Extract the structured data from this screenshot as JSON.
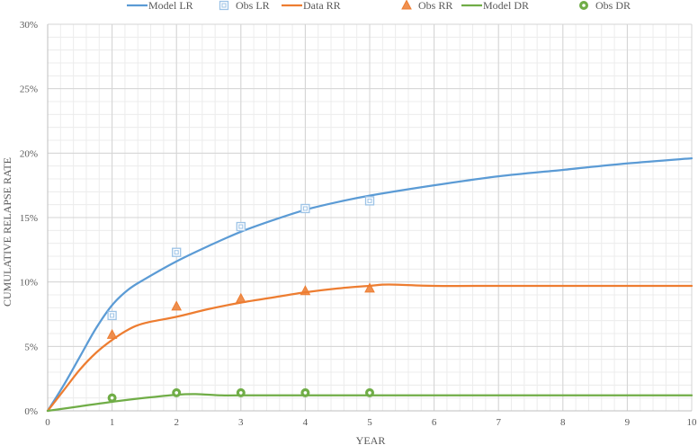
{
  "chart_data": {
    "type": "line",
    "xlabel": "YEAR",
    "ylabel": "CUMULATIVE RELAPSE RATE",
    "xlim": [
      0,
      10
    ],
    "ylim": [
      0,
      30
    ],
    "x_ticks": [
      "0",
      "1",
      "2",
      "3",
      "4",
      "5",
      "6",
      "7",
      "8",
      "9",
      "10"
    ],
    "y_ticks": [
      "0%",
      "5%",
      "10%",
      "15%",
      "20%",
      "25%",
      "30%"
    ],
    "grid": true,
    "legend_position": "top",
    "series": [
      {
        "name": "Model LR",
        "kind": "line",
        "color": "#5b9bd5",
        "points": [
          [
            0,
            0
          ],
          [
            0.25,
            2.0
          ],
          [
            0.5,
            4.2
          ],
          [
            0.75,
            6.4
          ],
          [
            1,
            8.2
          ],
          [
            1.25,
            9.4
          ],
          [
            1.5,
            10.2
          ],
          [
            2,
            11.6
          ],
          [
            2.5,
            12.8
          ],
          [
            3,
            13.9
          ],
          [
            3.5,
            14.8
          ],
          [
            4,
            15.6
          ],
          [
            4.5,
            16.2
          ],
          [
            5,
            16.7
          ],
          [
            6,
            17.5
          ],
          [
            7,
            18.2
          ],
          [
            8,
            18.7
          ],
          [
            9,
            19.2
          ],
          [
            10,
            19.6
          ]
        ]
      },
      {
        "name": "Obs LR",
        "kind": "marker-square",
        "color": "#9dc3e6",
        "points": [
          [
            1,
            7.4
          ],
          [
            2,
            12.3
          ],
          [
            3,
            14.3
          ],
          [
            4,
            15.7
          ],
          [
            5,
            16.3
          ]
        ]
      },
      {
        "name": "Data RR",
        "kind": "line",
        "color": "#ed7d31",
        "points": [
          [
            0,
            0
          ],
          [
            0.25,
            1.6
          ],
          [
            0.5,
            3.2
          ],
          [
            0.75,
            4.5
          ],
          [
            1,
            5.5
          ],
          [
            1.25,
            6.3
          ],
          [
            1.5,
            6.8
          ],
          [
            2,
            7.3
          ],
          [
            2.5,
            7.9
          ],
          [
            3,
            8.4
          ],
          [
            3.5,
            8.8
          ],
          [
            4,
            9.2
          ],
          [
            4.5,
            9.5
          ],
          [
            5,
            9.7
          ],
          [
            5.3,
            9.8
          ],
          [
            6,
            9.7
          ],
          [
            7,
            9.7
          ],
          [
            8,
            9.7
          ],
          [
            9,
            9.7
          ],
          [
            10,
            9.7
          ]
        ]
      },
      {
        "name": "Obs RR",
        "kind": "marker-triangle",
        "color": "#ed7d31",
        "points": [
          [
            1,
            5.9
          ],
          [
            2,
            8.1
          ],
          [
            3,
            8.7
          ],
          [
            4,
            9.3
          ],
          [
            5,
            9.5
          ]
        ]
      },
      {
        "name": "Model DR",
        "kind": "line",
        "color": "#70ad47",
        "points": [
          [
            0,
            0
          ],
          [
            0.5,
            0.35
          ],
          [
            1,
            0.7
          ],
          [
            1.5,
            1.0
          ],
          [
            2,
            1.25
          ],
          [
            2.3,
            1.3
          ],
          [
            2.7,
            1.2
          ],
          [
            3,
            1.2
          ],
          [
            4,
            1.2
          ],
          [
            5,
            1.2
          ],
          [
            6,
            1.2
          ],
          [
            7,
            1.2
          ],
          [
            8,
            1.2
          ],
          [
            9,
            1.2
          ],
          [
            10,
            1.2
          ]
        ]
      },
      {
        "name": "Obs DR",
        "kind": "marker-circle",
        "color": "#70ad47",
        "points": [
          [
            1,
            1.0
          ],
          [
            2,
            1.4
          ],
          [
            3,
            1.4
          ],
          [
            4,
            1.4
          ],
          [
            5,
            1.4
          ]
        ]
      }
    ]
  }
}
